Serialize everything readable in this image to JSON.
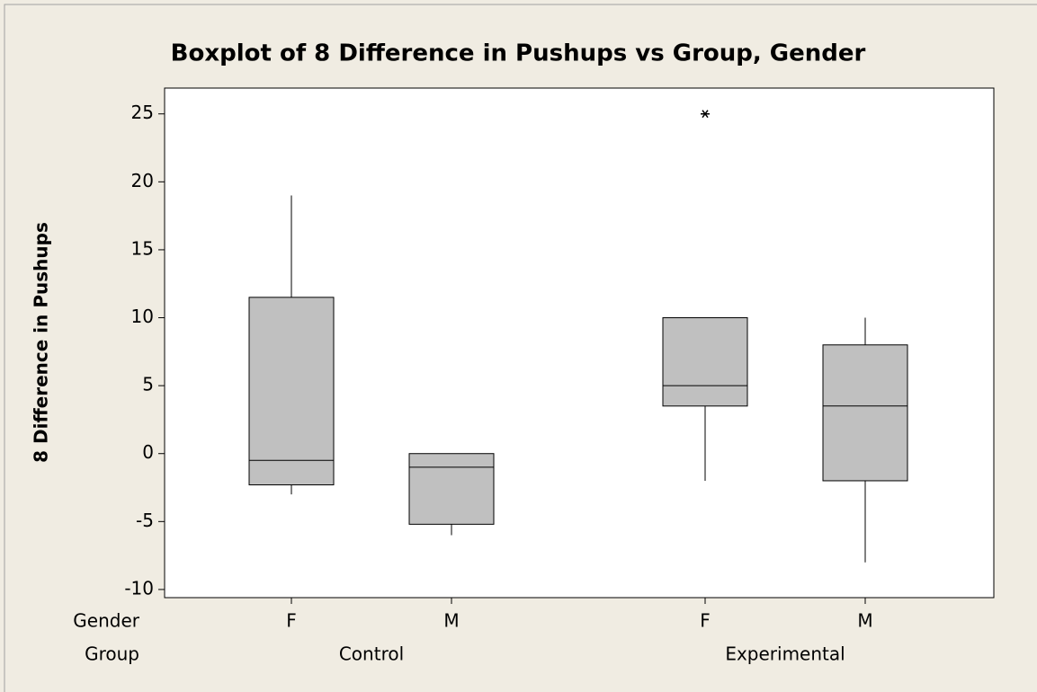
{
  "chart_data": {
    "type": "box",
    "title": "Boxplot of 8 Difference in Pushups vs Group, Gender",
    "y_label": "8 Difference in Pushups",
    "row_labels": [
      "Gender",
      "Group"
    ],
    "ylim": [
      -10.6,
      26.9
    ],
    "yticks": [
      -10,
      -5,
      0,
      5,
      10,
      15,
      20,
      25
    ],
    "box_color": "#c0c0c0",
    "groups": [
      {
        "name": "Control",
        "boxes": [
          {
            "label": "F",
            "whisker_low": -3,
            "q1": -2.3,
            "median": -0.5,
            "q3": 11.5,
            "whisker_high": 19
          },
          {
            "label": "M",
            "whisker_low": -6,
            "q1": -5.2,
            "median": -1,
            "q3": 0,
            "whisker_high": 0
          }
        ]
      },
      {
        "name": "Experimental",
        "boxes": [
          {
            "label": "F",
            "whisker_low": -2,
            "q1": 3.5,
            "median": 5,
            "q3": 10,
            "whisker_high": 10,
            "outliers": [
              25
            ]
          },
          {
            "label": "M",
            "whisker_low": -8,
            "q1": -2,
            "median": 3.5,
            "q3": 8,
            "whisker_high": 10
          }
        ]
      }
    ]
  }
}
